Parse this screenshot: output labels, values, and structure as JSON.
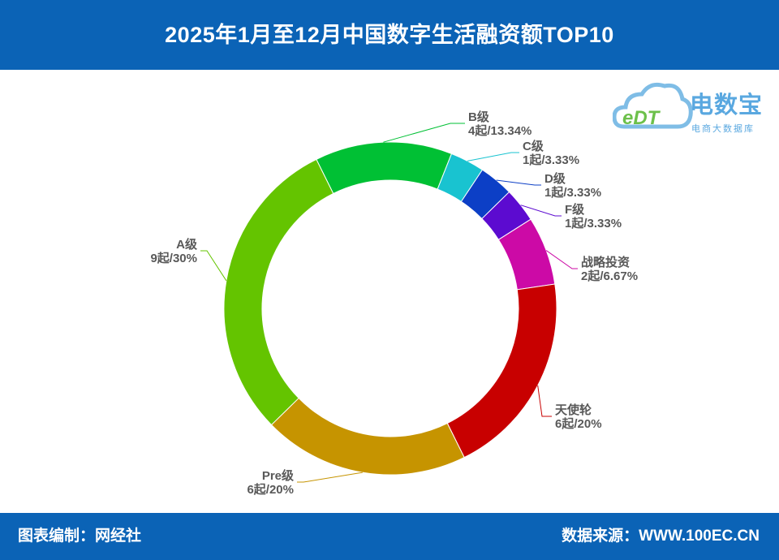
{
  "header": {
    "title": "2025年1月至12月中国数字生活融资额TOP10"
  },
  "footer": {
    "left": "图表编制：网经社",
    "right": "数据来源：WWW.100EC.CN"
  },
  "logo": {
    "brand": "电数宝",
    "sub": "电商大数据库",
    "mark": "eDT"
  },
  "chart_data": {
    "type": "pie",
    "donut": true,
    "title": "2025年1月至12月中国数字生活融资额TOP10",
    "total_count": 30,
    "slices": [
      {
        "name": "B级",
        "count": 4,
        "count_label": "4起",
        "percent": 13.34,
        "percent_label": "13.34%",
        "color": "#00c034"
      },
      {
        "name": "C级",
        "count": 1,
        "count_label": "1起",
        "percent": 3.33,
        "percent_label": "3.33%",
        "color": "#19c3d0"
      },
      {
        "name": "D级",
        "count": 1,
        "count_label": "1起",
        "percent": 3.33,
        "percent_label": "3.33%",
        "color": "#0c3fc6"
      },
      {
        "name": "F级",
        "count": 1,
        "count_label": "1起",
        "percent": 3.33,
        "percent_label": "3.33%",
        "color": "#5c0bd0"
      },
      {
        "name": "战略投资",
        "count": 2,
        "count_label": "2起",
        "percent": 6.67,
        "percent_label": "6.67%",
        "color": "#cc0aa6"
      },
      {
        "name": "天使轮",
        "count": 6,
        "count_label": "6起",
        "percent": 20,
        "percent_label": "20%",
        "color": "#c80000"
      },
      {
        "name": "Pre级",
        "count": 6,
        "count_label": "6起",
        "percent": 20,
        "percent_label": "20%",
        "color": "#c69400"
      },
      {
        "name": "A级",
        "count": 9,
        "count_label": "9起",
        "percent": 30,
        "percent_label": "30%",
        "color": "#64c400"
      }
    ]
  }
}
